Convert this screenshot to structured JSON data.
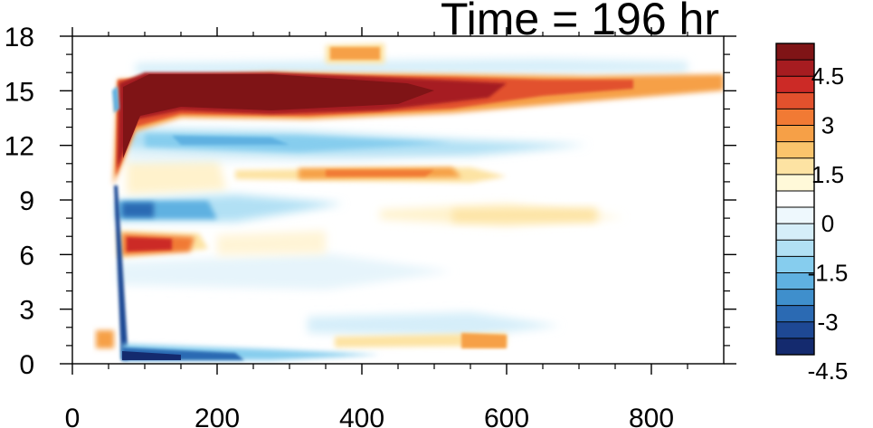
{
  "chart_data": {
    "type": "heatmap",
    "title": "Time = 196 hr",
    "xlabel": "",
    "ylabel": "",
    "xlim": [
      0,
      900
    ],
    "ylim": [
      0,
      18
    ],
    "x_ticks": [
      0,
      200,
      400,
      600,
      800
    ],
    "y_ticks": [
      0,
      3,
      6,
      9,
      12,
      15,
      18
    ],
    "colorbar": {
      "label_values": [
        "4.5",
        "3",
        "1.5",
        "0",
        "-1.5",
        "-3",
        "-4.5"
      ],
      "colors": [
        "#7f1416",
        "#a61c20",
        "#cc2a26",
        "#e2512d",
        "#f17a34",
        "#f6a047",
        "#fac46c",
        "#fde3a3",
        "#fff9d9",
        "#ffffff",
        "#eef8fd",
        "#d5eef9",
        "#b1e0f4",
        "#86cdee",
        "#5fb1e1",
        "#3f8fcc",
        "#2b6ab3",
        "#1e4894",
        "#142a6e"
      ]
    },
    "features": [
      {
        "desc": "strong positive band",
        "x": [
          60,
          900
        ],
        "y": [
          13,
          16
        ],
        "peak": 5.5
      },
      {
        "desc": "negative band",
        "x": [
          80,
          650
        ],
        "y": [
          11.3,
          12.7
        ],
        "peak": -2
      },
      {
        "desc": "positive band",
        "x": [
          330,
          520
        ],
        "y": [
          10,
          10.8
        ],
        "peak": 2.5
      },
      {
        "desc": "negative band",
        "x": [
          80,
          380
        ],
        "y": [
          8,
          9
        ],
        "peak": -4
      },
      {
        "desc": "positive band",
        "x": [
          420,
          700
        ],
        "y": [
          7.8,
          8.6
        ],
        "peak": 1.5
      },
      {
        "desc": "positive band",
        "x": [
          70,
          220
        ],
        "y": [
          6.2,
          7.2
        ],
        "peak": 4.5
      },
      {
        "desc": "negative band",
        "x": [
          70,
          420
        ],
        "y": [
          0.1,
          1.0
        ],
        "peak": -5
      },
      {
        "desc": "positive band",
        "x": [
          350,
          440
        ],
        "y": [
          16.8,
          17.6
        ],
        "peak": 2
      }
    ]
  }
}
